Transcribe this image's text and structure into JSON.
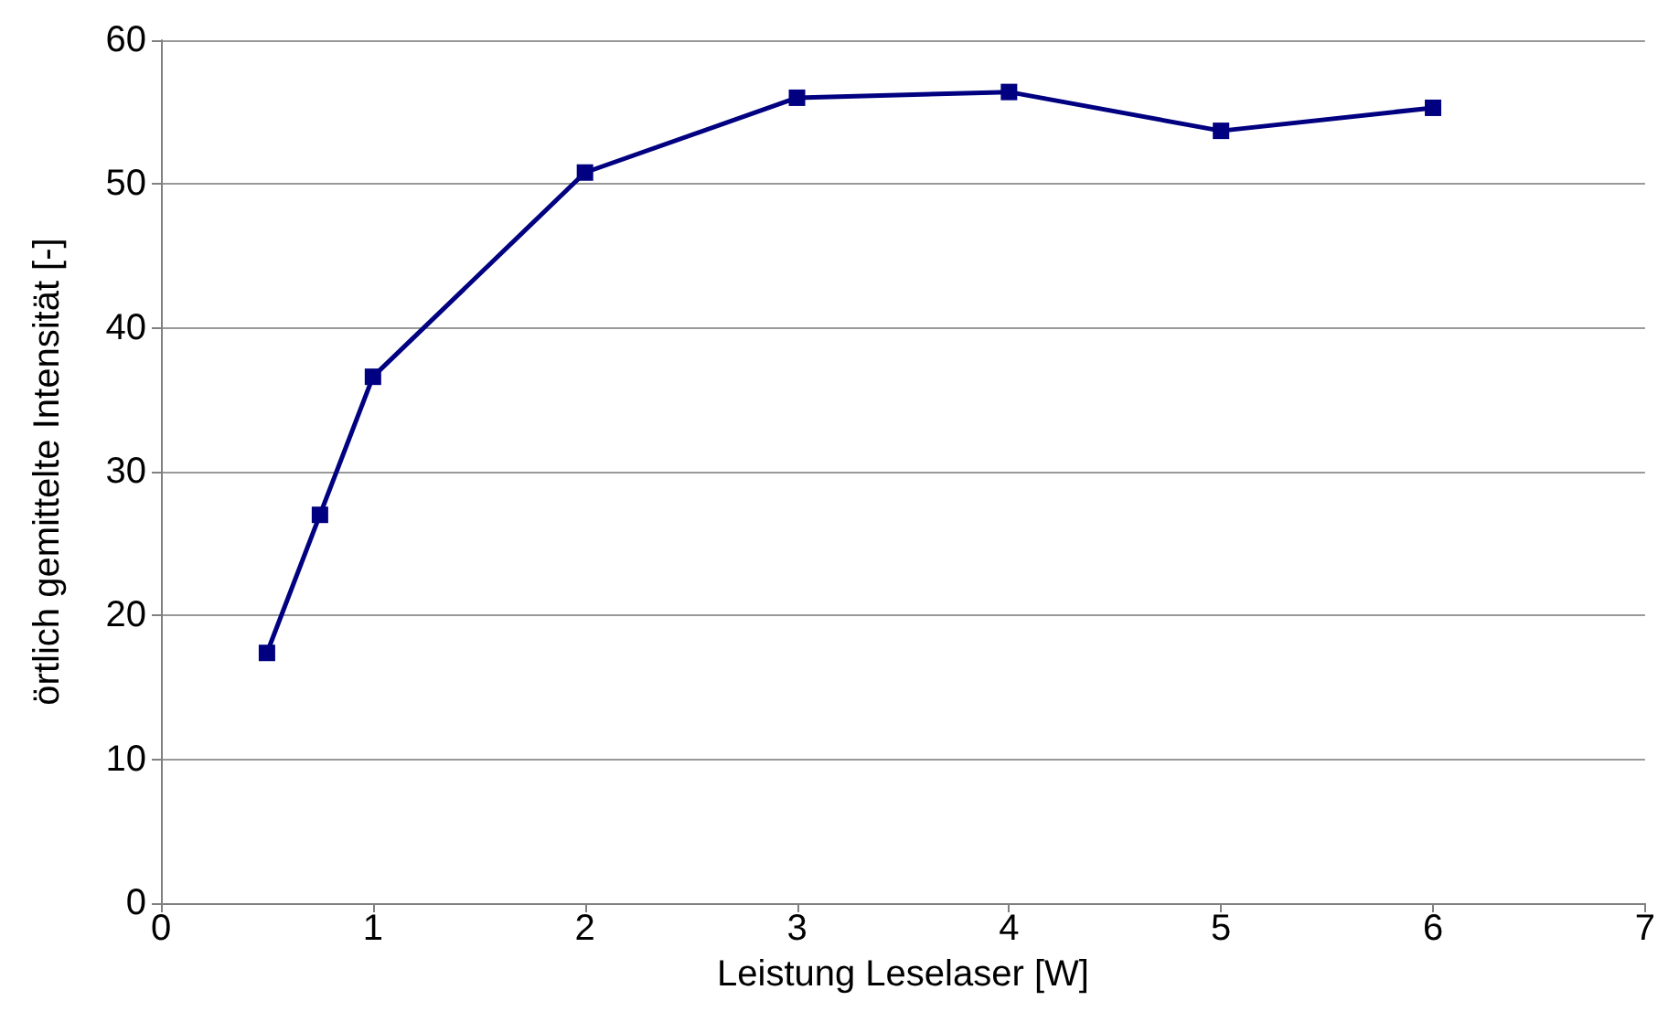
{
  "chart_data": {
    "type": "line",
    "xlabel": "Leistung Leselaser [W]",
    "ylabel": "örtlich gemittelte Intensität [-]",
    "x": [
      0.5,
      0.75,
      1,
      2,
      3,
      4,
      5,
      6
    ],
    "series": [
      {
        "color": "#000080",
        "values": [
          17.4,
          27.0,
          36.6,
          50.8,
          56.0,
          56.4,
          53.7,
          55.3
        ]
      }
    ],
    "xlim": [
      0,
      7
    ],
    "xticks": [
      0,
      1,
      2,
      3,
      4,
      5,
      6,
      7
    ],
    "ylim": [
      0,
      60
    ],
    "yticks": [
      0,
      10,
      20,
      30,
      40,
      50,
      60
    ],
    "grid": "y",
    "marker": "square",
    "line_style": "solid"
  }
}
